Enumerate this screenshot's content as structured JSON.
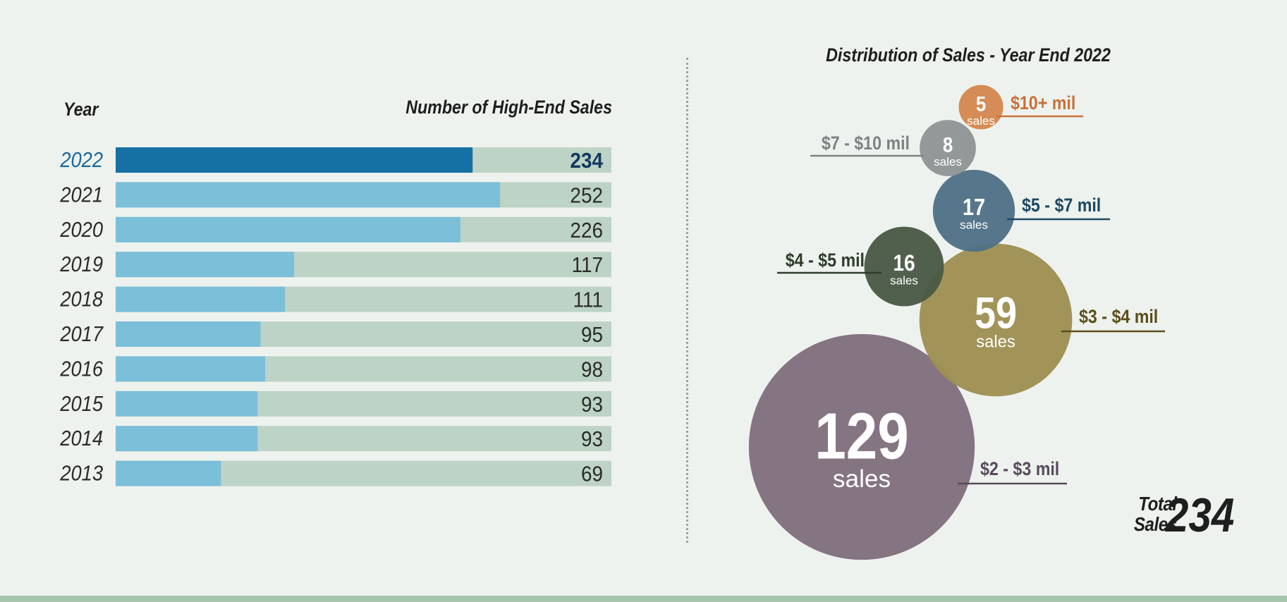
{
  "chart_data": [
    {
      "type": "bar",
      "orientation": "horizontal",
      "category_header": "Year",
      "value_header": "Number of High-End Sales",
      "categories": [
        "2022",
        "2021",
        "2020",
        "2019",
        "2018",
        "2017",
        "2016",
        "2015",
        "2014",
        "2013"
      ],
      "values": [
        234,
        252,
        226,
        117,
        111,
        95,
        98,
        93,
        93,
        69
      ],
      "xlim": [
        0,
        325
      ],
      "highlight_category": "2022",
      "colors": {
        "highlight_bar": "#1570a4",
        "bar": "#7bbfd9",
        "track": "#bdd3c6",
        "highlight_text": "#1c6a9b",
        "highlight_value": "#12395f",
        "text": "#2b2b2b"
      }
    },
    {
      "type": "bubble",
      "title": "Distribution of Sales - Year End 2022",
      "unit_label": "sales",
      "series": [
        {
          "name": "$10+ mil",
          "value": 5,
          "color": "#d4874f",
          "label_color": "#c8703a"
        },
        {
          "name": "$7 - $10 mil",
          "value": 8,
          "color": "#8f9595",
          "label_color": "#7d8282"
        },
        {
          "name": "$5 - $7 mil",
          "value": 17,
          "color": "#4f7086",
          "label_color": "#1c4a63"
        },
        {
          "name": "$4 - $5 mil",
          "value": 16,
          "color": "#4a5a45",
          "label_color": "#2f3c2b"
        },
        {
          "name": "$3 - $4 mil",
          "value": 59,
          "color": "#9e9052",
          "label_color": "#5b4e1a"
        },
        {
          "name": "$2 - $3 mil",
          "value": 129,
          "color": "#806e7d",
          "label_color": "#574a5c"
        }
      ],
      "total": {
        "label_line1": "Total",
        "label_line2": "Sales",
        "value": "234"
      }
    }
  ]
}
